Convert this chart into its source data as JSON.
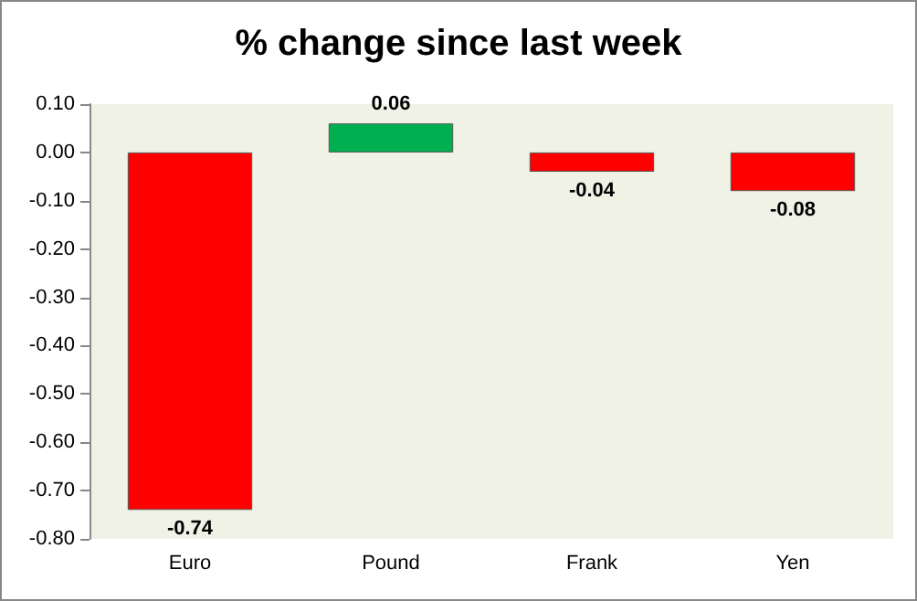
{
  "chart_data": {
    "type": "bar",
    "title": "% change since last week",
    "categories": [
      "Euro",
      "Pound",
      "Frank",
      "Yen"
    ],
    "values": [
      -0.74,
      0.06,
      -0.04,
      -0.08
    ],
    "colors": [
      "#ff0000",
      "#00b050",
      "#ff0000",
      "#ff0000"
    ],
    "ylim": [
      -0.8,
      0.1
    ],
    "yticks": [
      {
        "value": 0.1,
        "label": "0.10"
      },
      {
        "value": 0,
        "label": "0.00"
      },
      {
        "value": -0.1,
        "label": "-0.10"
      },
      {
        "value": -0.2,
        "label": "-0.20"
      },
      {
        "value": -0.3,
        "label": "-0.30"
      },
      {
        "value": -0.4,
        "label": "-0.40"
      },
      {
        "value": -0.5,
        "label": "-0.50"
      },
      {
        "value": -0.6,
        "label": "-0.60"
      },
      {
        "value": -0.7,
        "label": "-0.70"
      },
      {
        "value": -0.8,
        "label": "-0.80"
      }
    ],
    "grid": false,
    "data_labels": true
  }
}
